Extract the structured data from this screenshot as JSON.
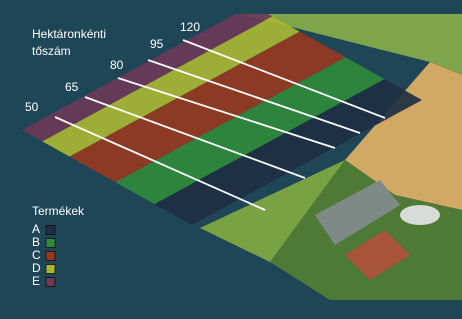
{
  "header": {
    "title_lines": [
      "Hektáronkénti",
      "tőszám"
    ]
  },
  "densities": [
    50,
    65,
    80,
    95,
    120
  ],
  "legend": {
    "title": "Termékek",
    "items": [
      {
        "label": "A",
        "color": "#1e2f42"
      },
      {
        "label": "B",
        "color": "#2f8a3a"
      },
      {
        "label": "C",
        "color": "#963a1f"
      },
      {
        "label": "D",
        "color": "#a8b733"
      },
      {
        "label": "E",
        "color": "#6a3a58"
      }
    ]
  }
}
